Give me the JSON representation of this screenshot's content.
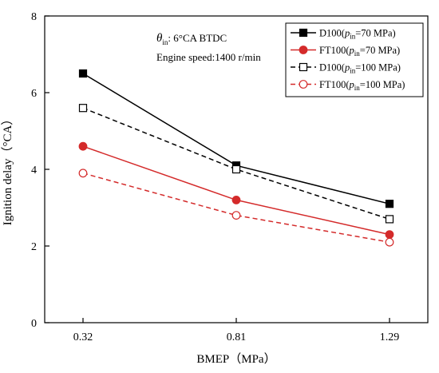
{
  "chart_data": {
    "type": "line",
    "xlabel": "BMEP（MPa）",
    "ylabel": "Ignition delay（°CA）",
    "categories": [
      "0.32",
      "0.81",
      "1.29"
    ],
    "ylim": [
      0,
      8
    ],
    "yticks": [
      "0",
      "2",
      "4",
      "6",
      "8"
    ],
    "grid": false,
    "legend_position": "top-right",
    "annotations": {
      "theta_symbol": "θ",
      "theta_sub": "in",
      "theta_value": ": 6°CA BTDC",
      "speed": "Engine speed:1400 r/min"
    },
    "series": [
      {
        "legend_prefix": "D100(",
        "legend_p": "p",
        "legend_sub": "in",
        "legend_suffix": "=70 MPa)",
        "values": [
          6.5,
          4.1,
          3.1
        ],
        "color": "#000000",
        "dashed": false,
        "marker": "square",
        "filled": true
      },
      {
        "legend_prefix": "FT100(",
        "legend_p": "p",
        "legend_sub": "in",
        "legend_suffix": "=70 MPa)",
        "values": [
          4.6,
          3.2,
          2.3
        ],
        "color": "#d42a2a",
        "dashed": false,
        "marker": "circle",
        "filled": true
      },
      {
        "legend_prefix": "D100(",
        "legend_p": "p",
        "legend_sub": "in",
        "legend_suffix": "=100 MPa)",
        "values": [
          5.6,
          4.0,
          2.7
        ],
        "color": "#000000",
        "dashed": true,
        "marker": "square",
        "filled": false
      },
      {
        "legend_prefix": "FT100(",
        "legend_p": "p",
        "legend_sub": "in",
        "legend_suffix": "=100 MPa)",
        "values": [
          3.9,
          2.8,
          2.1
        ],
        "color": "#d42a2a",
        "dashed": true,
        "marker": "circle",
        "filled": false
      }
    ]
  }
}
